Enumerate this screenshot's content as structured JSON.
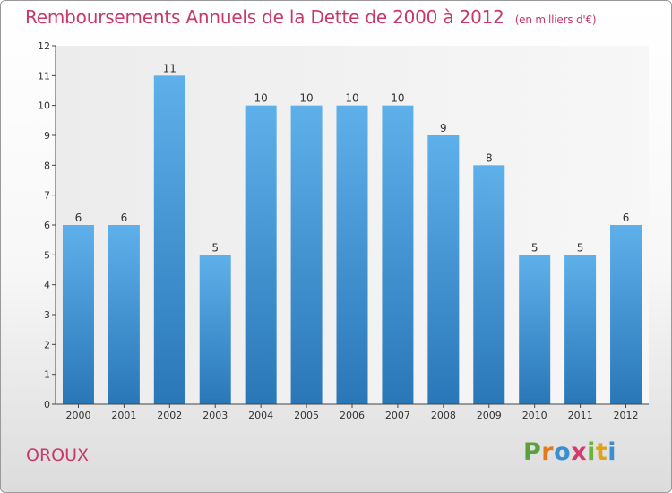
{
  "title": "Remboursements Annuels de la Dette de 2000 à 2012",
  "subtitle": "(en milliers d'€)",
  "town": "OROUX",
  "logo": {
    "letters": [
      "P",
      "r",
      "o",
      "x",
      "i",
      "t",
      "i"
    ],
    "colors": [
      "#5aa03c",
      "#e07a1c",
      "#3a8fd0",
      "#d63c6a",
      "#6ab43c",
      "#e0a21c",
      "#3a8fd0"
    ]
  },
  "colors": {
    "title": "#c8386a",
    "bar_top": "#5eb0ea",
    "bar_bottom": "#2a77b8"
  },
  "chart_data": {
    "type": "bar",
    "categories": [
      "2000",
      "2001",
      "2002",
      "2003",
      "2004",
      "2005",
      "2006",
      "2007",
      "2008",
      "2009",
      "2010",
      "2011",
      "2012"
    ],
    "values": [
      6,
      6,
      11,
      5,
      10,
      10,
      10,
      10,
      9,
      8,
      5,
      5,
      6
    ],
    "title": "Remboursements Annuels de la Dette de 2000 à 2012",
    "subtitle": "(en milliers d'€)",
    "xlabel": "",
    "ylabel": "",
    "ylim": [
      0,
      12
    ],
    "yticks": [
      0,
      1,
      2,
      3,
      4,
      5,
      6,
      7,
      8,
      9,
      10,
      11,
      12
    ],
    "grid": false,
    "data_labels": true
  }
}
